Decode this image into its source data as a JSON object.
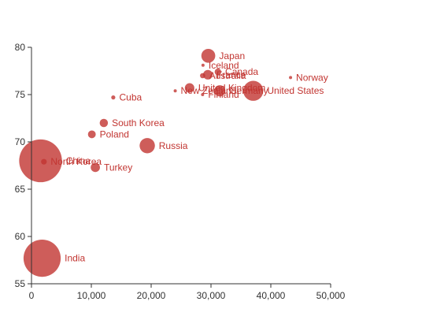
{
  "colors": {
    "bubble_fill": "#c23531",
    "bubble_label": "#c23531",
    "axis": "#333333"
  },
  "chart_data": {
    "type": "scatter",
    "variant": "bubble",
    "title": "",
    "xlabel": "",
    "ylabel": "",
    "xlim": [
      0,
      50000
    ],
    "ylim": [
      55,
      80
    ],
    "x_ticks": [
      0,
      10000,
      20000,
      30000,
      40000,
      50000
    ],
    "x_tick_labels": [
      "0",
      "10,000",
      "20,000",
      "30,000",
      "40,000",
      "50,000"
    ],
    "y_ticks": [
      55,
      60,
      65,
      70,
      75,
      80
    ],
    "y_tick_labels": [
      "55",
      "60",
      "65",
      "70",
      "75",
      "80"
    ],
    "grid": false,
    "legend": "none",
    "size_note": "bubble area encodes a third variable (population)",
    "points": [
      {
        "label": "Australia",
        "x": 28604,
        "y": 77,
        "size": 17096869
      },
      {
        "label": "Canada",
        "x": 31163,
        "y": 77.4,
        "size": 27662440
      },
      {
        "label": "China",
        "x": 1516,
        "y": 68,
        "size": 1154605773
      },
      {
        "label": "Cuba",
        "x": 13670,
        "y": 74.7,
        "size": 10582082
      },
      {
        "label": "Finland",
        "x": 28599,
        "y": 75,
        "size": 4986705
      },
      {
        "label": "France",
        "x": 29476,
        "y": 77.1,
        "size": 56943299
      },
      {
        "label": "Germany",
        "x": 31476,
        "y": 75.4,
        "size": 78958237
      },
      {
        "label": "Iceland",
        "x": 28666,
        "y": 78.1,
        "size": 254830
      },
      {
        "label": "India",
        "x": 1777,
        "y": 57.7,
        "size": 870601776
      },
      {
        "label": "Japan",
        "x": 29550,
        "y": 79.1,
        "size": 122249285
      },
      {
        "label": "North Korea",
        "x": 2076,
        "y": 67.9,
        "size": 20194354
      },
      {
        "label": "South Korea",
        "x": 12087,
        "y": 72,
        "size": 42972254
      },
      {
        "label": "New Zealand",
        "x": 24021,
        "y": 75.4,
        "size": 3397534
      },
      {
        "label": "Norway",
        "x": 43296,
        "y": 76.8,
        "size": 4240375
      },
      {
        "label": "Poland",
        "x": 10088,
        "y": 70.8,
        "size": 38195258
      },
      {
        "label": "Russia",
        "x": 19349,
        "y": 69.6,
        "size": 147568552
      },
      {
        "label": "Turkey",
        "x": 10670,
        "y": 67.3,
        "size": 53994605
      },
      {
        "label": "United Kingdom",
        "x": 26424,
        "y": 75.7,
        "size": 57110117
      },
      {
        "label": "United States",
        "x": 37062,
        "y": 75.4,
        "size": 252847810
      }
    ]
  }
}
